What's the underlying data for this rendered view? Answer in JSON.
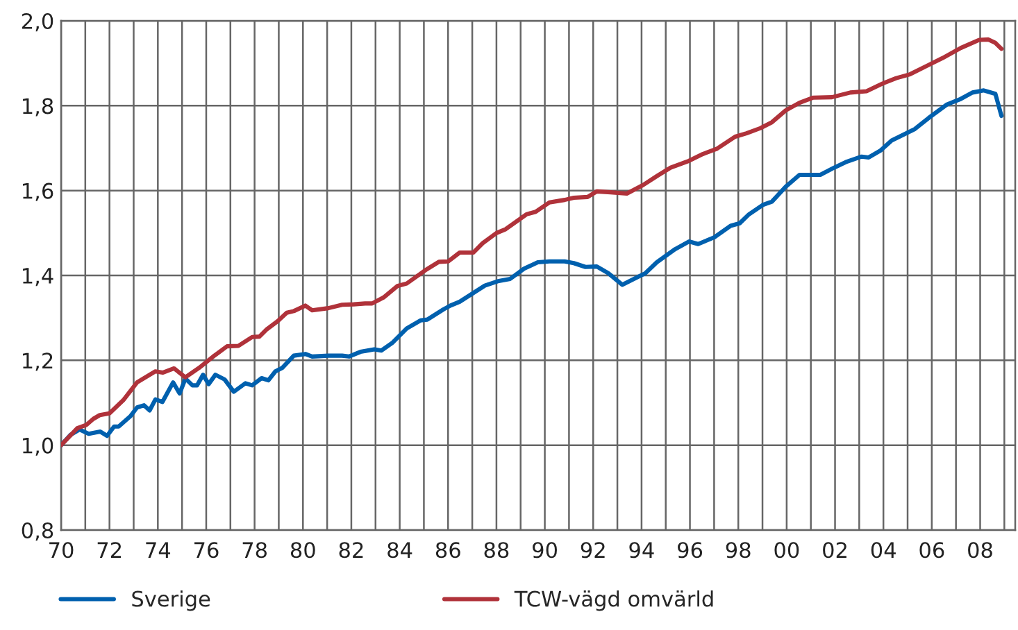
{
  "chart_data": {
    "type": "line",
    "xlim": [
      1970,
      2009.45
    ],
    "ylim": [
      0.8,
      2.0
    ],
    "xticks": [
      {
        "value": 1970,
        "label": "70"
      },
      {
        "value": 1971,
        "label": null
      },
      {
        "value": 1972,
        "label": "72"
      },
      {
        "value": 1973,
        "label": null
      },
      {
        "value": 1974,
        "label": "74"
      },
      {
        "value": 1975,
        "label": null
      },
      {
        "value": 1976,
        "label": "76"
      },
      {
        "value": 1977,
        "label": null
      },
      {
        "value": 1978,
        "label": "78"
      },
      {
        "value": 1979,
        "label": null
      },
      {
        "value": 1980,
        "label": "80"
      },
      {
        "value": 1981,
        "label": null
      },
      {
        "value": 1982,
        "label": "82"
      },
      {
        "value": 1983,
        "label": null
      },
      {
        "value": 1984,
        "label": "84"
      },
      {
        "value": 1985,
        "label": null
      },
      {
        "value": 1986,
        "label": "86"
      },
      {
        "value": 1987,
        "label": null
      },
      {
        "value": 1988,
        "label": "88"
      },
      {
        "value": 1989,
        "label": null
      },
      {
        "value": 1990,
        "label": "90"
      },
      {
        "value": 1991,
        "label": null
      },
      {
        "value": 1992,
        "label": "92"
      },
      {
        "value": 1993,
        "label": null
      },
      {
        "value": 1994,
        "label": "94"
      },
      {
        "value": 1995,
        "label": null
      },
      {
        "value": 1996,
        "label": "96"
      },
      {
        "value": 1997,
        "label": null
      },
      {
        "value": 1998,
        "label": "98"
      },
      {
        "value": 1999,
        "label": null
      },
      {
        "value": 2000,
        "label": "00"
      },
      {
        "value": 2001,
        "label": null
      },
      {
        "value": 2002,
        "label": "02"
      },
      {
        "value": 2003,
        "label": null
      },
      {
        "value": 2004,
        "label": "04"
      },
      {
        "value": 2005,
        "label": null
      },
      {
        "value": 2006,
        "label": "06"
      },
      {
        "value": 2007,
        "label": null
      },
      {
        "value": 2008,
        "label": "08"
      },
      {
        "value": 2009,
        "label": null
      }
    ],
    "yticks": [
      {
        "value": 0.8,
        "label": "0,8"
      },
      {
        "value": 1.0,
        "label": "1,0"
      },
      {
        "value": 1.2,
        "label": "1,2"
      },
      {
        "value": 1.4,
        "label": "1,4"
      },
      {
        "value": 1.6,
        "label": "1,6"
      },
      {
        "value": 1.8,
        "label": "1,8"
      },
      {
        "value": 2.0,
        "label": "2,0"
      }
    ],
    "grid": true,
    "legend": "bottom",
    "line_style": "solid",
    "marker": "none",
    "series": [
      {
        "name": "Sverige",
        "color": "#0060ae",
        "x": [
          1970,
          1970.38,
          1970.76,
          1971.14,
          1971.62,
          1971.9,
          1972.19,
          1972.38,
          1972.86,
          1973.14,
          1973.43,
          1973.66,
          1973.9,
          1974.19,
          1974.63,
          1974.9,
          1975.14,
          1975.43,
          1975.62,
          1975.87,
          1976.1,
          1976.38,
          1976.76,
          1977.14,
          1977.62,
          1977.9,
          1978.29,
          1978.57,
          1978.86,
          1979.14,
          1979.62,
          1980.1,
          1980.38,
          1981.05,
          1981.62,
          1981.9,
          1982.38,
          1982.95,
          1983.24,
          1983.71,
          1984.29,
          1984.86,
          1985.14,
          1985.81,
          1986.1,
          1986.48,
          1987.05,
          1987.52,
          1988.1,
          1988.57,
          1989.14,
          1989.71,
          1990.19,
          1990.82,
          1991.2,
          1991.68,
          1992.15,
          1992.63,
          1993.2,
          1993.87,
          1994.15,
          1994.63,
          1995.39,
          1995.96,
          1996.34,
          1997.01,
          1997.68,
          1998.06,
          1998.44,
          1999.01,
          1999.39,
          1999.96,
          2000.53,
          2001.39,
          2001.96,
          2002.44,
          2003.1,
          2003.39,
          2003.87,
          2004.34,
          2005.3,
          2005.87,
          2006.63,
          2007.2,
          2007.68,
          2008.15,
          2008.63,
          2008.88
        ],
        "values": [
          1.0,
          1.024,
          1.037,
          1.027,
          1.032,
          1.022,
          1.044,
          1.044,
          1.068,
          1.089,
          1.094,
          1.082,
          1.108,
          1.102,
          1.148,
          1.122,
          1.157,
          1.141,
          1.141,
          1.166,
          1.144,
          1.166,
          1.155,
          1.126,
          1.146,
          1.141,
          1.158,
          1.153,
          1.174,
          1.182,
          1.211,
          1.215,
          1.209,
          1.211,
          1.211,
          1.209,
          1.22,
          1.226,
          1.223,
          1.242,
          1.275,
          1.294,
          1.296,
          1.32,
          1.329,
          1.338,
          1.359,
          1.376,
          1.387,
          1.392,
          1.416,
          1.431,
          1.433,
          1.433,
          1.429,
          1.42,
          1.421,
          1.405,
          1.378,
          1.397,
          1.405,
          1.431,
          1.462,
          1.48,
          1.474,
          1.49,
          1.517,
          1.523,
          1.544,
          1.566,
          1.574,
          1.609,
          1.637,
          1.637,
          1.654,
          1.667,
          1.68,
          1.678,
          1.694,
          1.718,
          1.745,
          1.771,
          1.803,
          1.816,
          1.831,
          1.836,
          1.828,
          1.776
        ]
      },
      {
        "name": "TCW-vägd omvärld",
        "color": "#b0323a",
        "x": [
          1970,
          1970.67,
          1971.05,
          1971.33,
          1971.6,
          1972,
          1972.57,
          1973.14,
          1973.9,
          1974.2,
          1974.67,
          1975.14,
          1975.7,
          1976.29,
          1976.86,
          1977.33,
          1977.9,
          1978.2,
          1978.48,
          1978.95,
          1979.33,
          1979.62,
          1980.1,
          1980.38,
          1981.05,
          1981.62,
          1982.1,
          1982.57,
          1982.86,
          1983.33,
          1983.9,
          1984.29,
          1985.05,
          1985.62,
          1986,
          1986.48,
          1987.05,
          1987.43,
          1988,
          1988.38,
          1989.24,
          1989.62,
          1990.19,
          1990.82,
          1991.2,
          1991.77,
          1992.15,
          1992.72,
          1993.39,
          1994.06,
          1994.63,
          1995.2,
          1995.96,
          1996.53,
          1997.1,
          1997.87,
          1998.34,
          1998.91,
          1999.39,
          1999.96,
          2000.53,
          2001.1,
          2001.87,
          2002.63,
          2003.3,
          2003.96,
          2004.53,
          2005.1,
          2005.87,
          2006.44,
          2007.2,
          2007.96,
          2008.34,
          2008.63,
          2008.88
        ],
        "values": [
          1.0,
          1.04,
          1.048,
          1.062,
          1.071,
          1.075,
          1.106,
          1.148,
          1.174,
          1.171,
          1.181,
          1.16,
          1.182,
          1.209,
          1.233,
          1.234,
          1.255,
          1.256,
          1.272,
          1.292,
          1.312,
          1.316,
          1.329,
          1.318,
          1.323,
          1.331,
          1.332,
          1.334,
          1.334,
          1.348,
          1.375,
          1.381,
          1.412,
          1.432,
          1.433,
          1.454,
          1.454,
          1.476,
          1.5,
          1.509,
          1.544,
          1.55,
          1.572,
          1.578,
          1.583,
          1.585,
          1.598,
          1.596,
          1.593,
          1.613,
          1.634,
          1.654,
          1.67,
          1.686,
          1.698,
          1.727,
          1.735,
          1.747,
          1.761,
          1.789,
          1.807,
          1.819,
          1.82,
          1.831,
          1.834,
          1.852,
          1.865,
          1.874,
          1.896,
          1.912,
          1.936,
          1.955,
          1.956,
          1.948,
          1.934
        ]
      }
    ]
  }
}
